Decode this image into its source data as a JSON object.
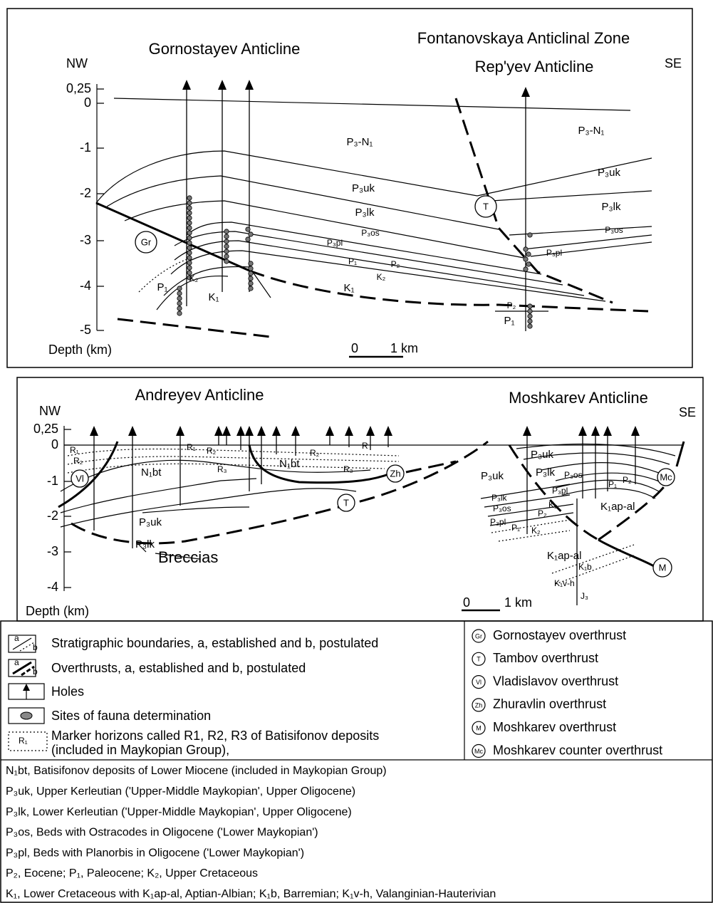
{
  "top_section": {
    "titles": [
      "Gornostayev Anticline",
      "Fontanovskaya Anticlinal Zone",
      "Rep'yev Anticline"
    ],
    "nw": "NW",
    "se": "SE",
    "depth_ticks": [
      "0,25",
      "0",
      "-1",
      "-2",
      "-3",
      "-4",
      "-5"
    ],
    "depth_label": "Depth (km)",
    "scale": [
      "0",
      "1 km"
    ],
    "unit_labels": [
      "P₃-N₁",
      "P₃uk",
      "P₃lk",
      "P₃os",
      "P₃pl",
      "P₁",
      "P₂",
      "K₂",
      "K₁",
      "K₂",
      "K₁",
      "P₁",
      "P₃-N₁",
      "P₃uk",
      "P₃lk",
      "P₃os",
      "P₃pl",
      "P₂",
      "P₁"
    ],
    "overthrusts": [
      "Gr",
      "T"
    ]
  },
  "bottom_section": {
    "titles": [
      "Andreyev Anticline",
      "Moshkarev Anticline"
    ],
    "nw": "NW",
    "se": "SE",
    "depth_ticks": [
      "0,25",
      "0",
      "-1",
      "-2",
      "-3",
      "-4"
    ],
    "depth_label": "Depth (km)",
    "scale": [
      "0",
      "1 km"
    ],
    "unit_labels": [
      "R₁",
      "R₂",
      "R₁",
      "R₂",
      "R₃",
      "R₂",
      "R₃",
      "R",
      "N₁bt",
      "N₁bt",
      "P₃uk",
      "P₃lk",
      "Breccias",
      "P₃uk",
      "P₃uk",
      "P₃lk",
      "P₃os",
      "P₃pl",
      "P₁",
      "P₂",
      "P₃lk",
      "P₃os",
      "P₃pl",
      "P₁",
      "P₂",
      "K₂",
      "K₂",
      "K₁ap-al",
      "K₁ap-al",
      "K₁b",
      "K₁v-h",
      "J₃"
    ],
    "overthrusts": [
      "Vl",
      "Zh",
      "T",
      "Mc",
      "M"
    ]
  },
  "legend": {
    "left": [
      {
        "a": "a",
        "b": "b",
        "text": "Stratigraphic boundaries, a, established and b, postulated"
      },
      {
        "a": "a",
        "b": "b",
        "text": "Overthrusts, a, established and b, postulated"
      },
      {
        "text": "Holes"
      },
      {
        "text": "Sites of fauna determination"
      },
      {
        "symbol": "R₁",
        "text": "Marker horizons called R1, R2, R3 of Batisifonov deposits",
        "text2": "(included in Maykopian Group),"
      }
    ],
    "right": [
      {
        "symbol": "Gr",
        "text": "Gornostayev overthrust"
      },
      {
        "symbol": "T",
        "text": "Tambov overthrust"
      },
      {
        "symbol": "Vl",
        "text": "Vladislavov overthrust"
      },
      {
        "symbol": "Zh",
        "text": "Zhuravlin overthrust"
      },
      {
        "symbol": "M",
        "text": "Moshkarev overthrust"
      },
      {
        "symbol": "Mc",
        "text": "Moshkarev counter overthrust"
      }
    ]
  },
  "notes": [
    "N₁bt, Batisifonov deposits of Lower Miocene (included in Maykopian Group)",
    "P₃uk, Upper Kerleutian ('Upper-Middle Maykopian', Upper Oligocene)",
    "P₃lk, Lower Kerleutian ('Upper-Middle Maykopian', Upper Oligocene)",
    "P₃os, Beds with Ostracodes in Oligocene ('Lower Maykopian')",
    "P₃pl, Beds with Planorbis in Oligocene ('Lower Maykopian')",
    "P₂, Eocene; P₁, Paleocene;  K₂, Upper Cretaceous",
    "K₁, Lower Cretaceous with K₁ap-al, Aptian-Albian; K₁b, Barremian; K₁v-h, Valanginian-Hauterivian"
  ]
}
